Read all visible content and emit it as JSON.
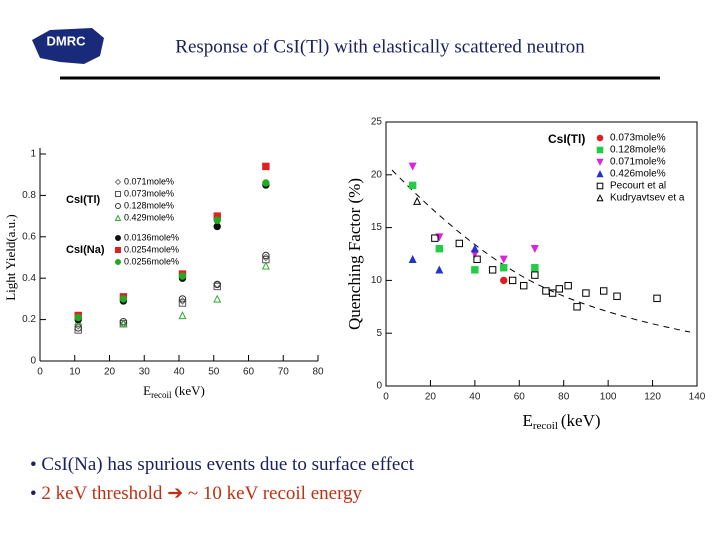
{
  "logo": "DMRC",
  "title": "Response of CsI(Tl) with elastically scattered neutron",
  "bullets": [
    {
      "text": "CsI(Na) has spurious events due to surface effect"
    },
    {
      "before": "2 keV threshold",
      "after": "~ 10 keV recoil energy"
    }
  ],
  "chart_data": [
    {
      "type": "scatter",
      "ylabel": "Light Yield(a.u.)",
      "xlabel": "E",
      "xlabel_sub": "recoil",
      "xlabel_unit": "(keV)",
      "xlim": [
        0,
        80
      ],
      "xticks": [
        0,
        10,
        20,
        30,
        40,
        50,
        60,
        70,
        80
      ],
      "ylim": [
        0,
        1
      ],
      "yticks": [
        0,
        0.2,
        0.4,
        0.6,
        0.8,
        1
      ],
      "x": [
        11,
        24,
        41,
        51,
        65
      ],
      "series_groups": [
        {
          "name": "CsI(Tl)",
          "series": [
            {
              "name": "0.071mole%",
              "color": "#777777",
              "marker": "diamond",
              "filled": false,
              "values": [
                0.17,
                0.18,
                0.29,
                0.37,
                0.5
              ]
            },
            {
              "name": "0.073mole%",
              "color": "#555555",
              "marker": "square",
              "filled": false,
              "values": [
                0.15,
                0.18,
                0.28,
                0.36,
                0.49
              ]
            },
            {
              "name": "0.128mole%",
              "color": "#333333",
              "marker": "circle",
              "filled": false,
              "values": [
                0.16,
                0.19,
                0.3,
                0.37,
                0.51
              ]
            },
            {
              "name": "0.429mole%",
              "color": "#33aa33",
              "marker": "triangle",
              "filled": false,
              "values": [
                0.19,
                0.18,
                0.22,
                0.3,
                0.46
              ]
            }
          ]
        },
        {
          "name": "CsI(Na)",
          "series": [
            {
              "name": "0.0136mole%",
              "color": "#111111",
              "marker": "circle",
              "filled": true,
              "values": [
                0.2,
                0.29,
                0.4,
                0.65,
                0.85
              ]
            },
            {
              "name": "0.0254mole%",
              "color": "#e02020",
              "marker": "square",
              "filled": true,
              "values": [
                0.22,
                0.31,
                0.42,
                0.7,
                0.94
              ]
            },
            {
              "name": "0.0256mole%",
              "color": "#22aa22",
              "marker": "circle",
              "filled": true,
              "values": [
                0.21,
                0.3,
                0.41,
                0.68,
                0.86
              ]
            }
          ]
        }
      ]
    },
    {
      "type": "scatter",
      "ylabel": "Quenching Factor (%)",
      "xlabel": "E",
      "xlabel_sub": "recoil",
      "xlabel_unit": "(keV)",
      "xlim": [
        0,
        140
      ],
      "xticks": [
        0,
        20,
        40,
        60,
        80,
        100,
        120,
        140
      ],
      "ylim": [
        0,
        25
      ],
      "yticks": [
        0,
        5,
        10,
        15,
        20,
        25
      ],
      "legend_title": "CsI(Tl)",
      "series": [
        {
          "name": "0.073mole%",
          "color": "#e02020",
          "marker": "circle",
          "filled": true,
          "x": [
            53
          ],
          "values": [
            10
          ]
        },
        {
          "name": "0.128mole%",
          "color": "#22cc44",
          "marker": "square",
          "filled": true,
          "x": [
            12,
            24,
            40,
            53,
            67
          ],
          "values": [
            19,
            13,
            11,
            11.2,
            11.2
          ]
        },
        {
          "name": "0.071mole%",
          "color": "#dd22dd",
          "marker": "triangle-down",
          "filled": true,
          "x": [
            12,
            24,
            40,
            53,
            67
          ],
          "values": [
            20.8,
            14.1,
            12.5,
            12,
            13
          ]
        },
        {
          "name": "0.426mole%",
          "color": "#2233cc",
          "marker": "triangle",
          "filled": true,
          "x": [
            12,
            24,
            40
          ],
          "values": [
            12,
            11,
            13
          ]
        },
        {
          "name": "Pecourt et al",
          "color": "#000000",
          "marker": "square",
          "filled": false,
          "x": [
            22,
            33,
            41,
            48,
            57,
            62,
            67,
            72,
            75,
            78,
            82,
            86,
            90,
            98,
            104,
            122
          ],
          "values": [
            14,
            13.5,
            12,
            11,
            10,
            9.5,
            10.5,
            9,
            8.8,
            9.2,
            9.5,
            7.5,
            8.8,
            9,
            8.5,
            8.3
          ]
        },
        {
          "name": "Kudryavtsev et a",
          "color": "#000000",
          "marker": "triangle",
          "filled": false,
          "x": [
            14
          ],
          "values": [
            17.5
          ]
        }
      ]
    }
  ]
}
